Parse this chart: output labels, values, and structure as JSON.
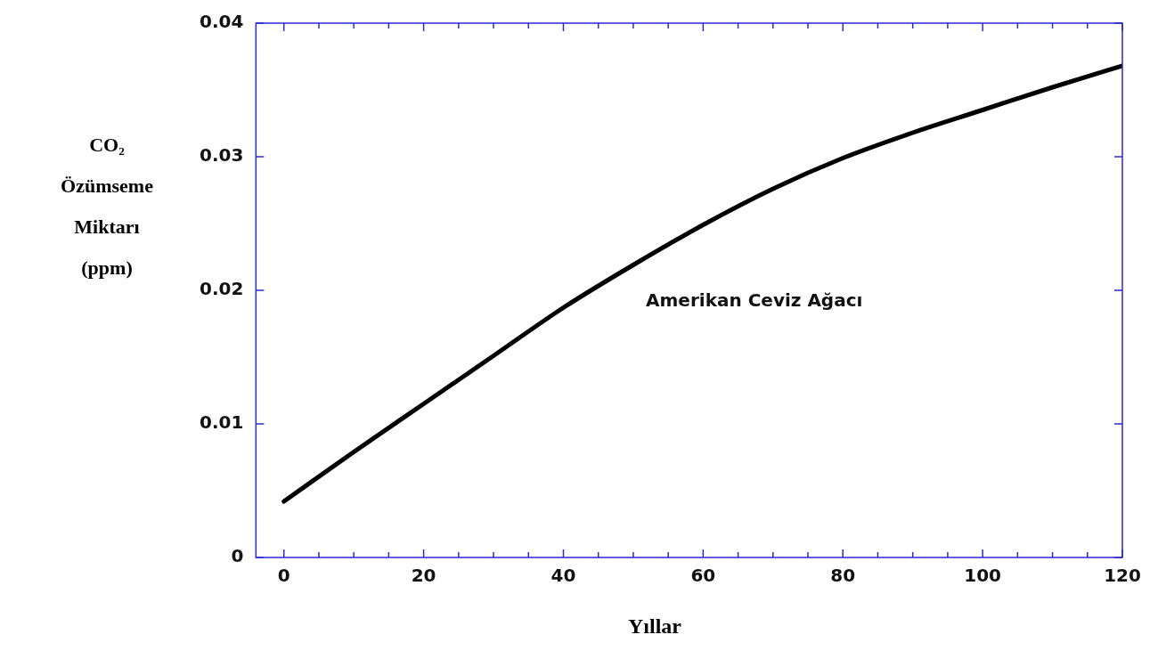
{
  "chart_data": {
    "type": "line",
    "xlabel": "Yıllar",
    "ylabel": "CO₂ Özümseme Miktarı (ppm)",
    "series": [
      {
        "name": "Amerikan Ceviz Ağacı",
        "color": "#000000",
        "x": [
          0,
          10,
          20,
          30,
          40,
          50,
          60,
          70,
          80,
          90,
          100,
          110,
          120
        ],
        "values": [
          0.0042,
          0.0079,
          0.0115,
          0.0151,
          0.0187,
          0.0219,
          0.0249,
          0.0276,
          0.0299,
          0.0318,
          0.0335,
          0.0352,
          0.0368
        ]
      }
    ],
    "xlim": [
      -4,
      120
    ],
    "ylim": [
      0,
      0.04
    ],
    "xticks": [
      0,
      20,
      40,
      60,
      80,
      100,
      120
    ],
    "yticks": [
      0,
      0.01,
      0.02,
      0.03,
      0.04
    ],
    "grid": false,
    "legend": false,
    "marker": "none",
    "line_style": "solid"
  }
}
